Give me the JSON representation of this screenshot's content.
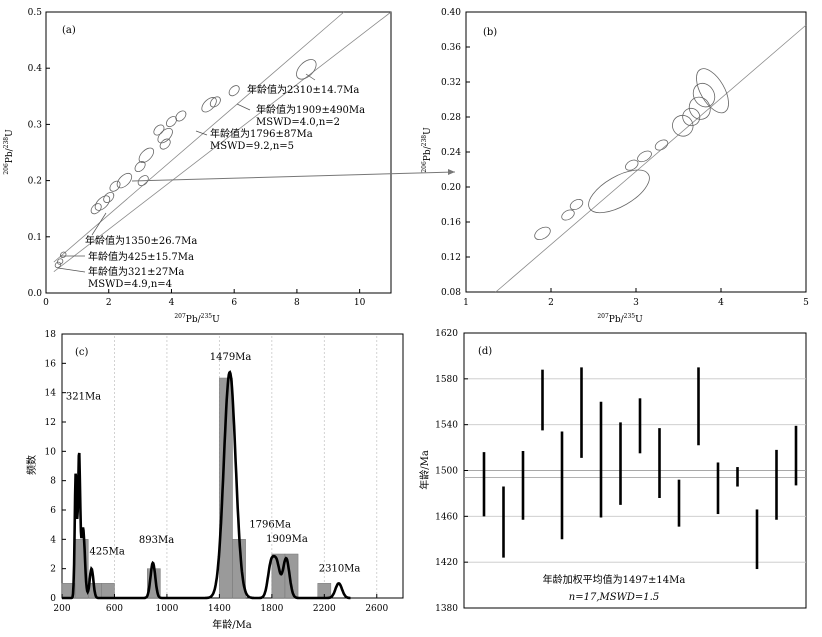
{
  "colors": {
    "curve": "#000000",
    "line": "#8a8a8a",
    "bar": "#9a9a9a",
    "grid": "#c8c8c8"
  },
  "chart_data": [
    {
      "panel": "(a)",
      "type": "scatter",
      "xlabel": "207Pb/235U",
      "ylabel": "206Pb/238U",
      "xlim": [
        0,
        11
      ],
      "ylim": [
        0,
        0.5
      ],
      "x_ticks": [
        0,
        2,
        4,
        6,
        8,
        10
      ],
      "y_ticks": [
        0,
        0.1,
        0.2,
        0.3,
        0.4,
        0.5
      ],
      "concordia_ages_Ma": [
        500,
        1500,
        2500
      ],
      "annotations": [
        "年龄值为2310±14.7Ma",
        "年龄值为1909±490Ma",
        "MSWD=4.0,n=2",
        "年龄值为1796±87Ma",
        "MSWD=9.2,n=5",
        "年龄值为1350±26.7Ma",
        "年龄值为425±15.7Ma",
        "年龄值为321±27Ma",
        "MSWD=4.9,n=4"
      ],
      "ellipses": [
        {
          "x": 8.3,
          "y": 0.398
        },
        {
          "x": 6.0,
          "y": 0.36
        },
        {
          "x": 5.4,
          "y": 0.34
        },
        {
          "x": 5.2,
          "y": 0.335
        },
        {
          "x": 4.3,
          "y": 0.315
        },
        {
          "x": 4.0,
          "y": 0.305
        },
        {
          "x": 3.8,
          "y": 0.28
        },
        {
          "x": 3.6,
          "y": 0.29
        },
        {
          "x": 3.8,
          "y": 0.265
        },
        {
          "x": 3.2,
          "y": 0.245
        },
        {
          "x": 3.0,
          "y": 0.225
        },
        {
          "x": 3.1,
          "y": 0.2
        },
        {
          "x": 2.5,
          "y": 0.2
        },
        {
          "x": 2.2,
          "y": 0.19
        },
        {
          "x": 2.0,
          "y": 0.17
        },
        {
          "x": 1.8,
          "y": 0.16
        },
        {
          "x": 1.6,
          "y": 0.15
        },
        {
          "x": 0.55,
          "y": 0.068
        },
        {
          "x": 0.45,
          "y": 0.056
        },
        {
          "x": 0.38,
          "y": 0.05
        }
      ]
    },
    {
      "panel": "(b)",
      "type": "scatter",
      "xlabel": "207Pb/235U",
      "ylabel": "206Pb/238U",
      "xlim": [
        1,
        5
      ],
      "ylim": [
        0.08,
        0.4
      ],
      "x_ticks": [
        1,
        2,
        3,
        4,
        5
      ],
      "y_ticks": [
        0.08,
        0.12,
        0.16,
        0.2,
        0.24,
        0.28,
        0.32,
        0.36,
        0.4
      ],
      "concordia_ages_Ma": [
        1100,
        1500
      ],
      "ellipses": [
        {
          "x": 1.9,
          "y": 0.147,
          "rx": 0.1,
          "ry": 0.006
        },
        {
          "x": 2.2,
          "y": 0.168,
          "rx": 0.08,
          "ry": 0.005
        },
        {
          "x": 2.3,
          "y": 0.18,
          "rx": 0.08,
          "ry": 0.005
        },
        {
          "x": 2.8,
          "y": 0.195,
          "rx": 0.4,
          "ry": 0.017
        },
        {
          "x": 2.95,
          "y": 0.225,
          "rx": 0.08,
          "ry": 0.005
        },
        {
          "x": 3.1,
          "y": 0.235,
          "rx": 0.09,
          "ry": 0.005
        },
        {
          "x": 3.3,
          "y": 0.248,
          "rx": 0.08,
          "ry": 0.005
        },
        {
          "x": 3.55,
          "y": 0.27,
          "rx": 0.12,
          "ry": 0.012
        },
        {
          "x": 3.65,
          "y": 0.28,
          "rx": 0.1,
          "ry": 0.01
        },
        {
          "x": 3.75,
          "y": 0.29,
          "rx": 0.12,
          "ry": 0.013
        },
        {
          "x": 3.8,
          "y": 0.305,
          "rx": 0.12,
          "ry": 0.014
        },
        {
          "x": 3.9,
          "y": 0.31,
          "rx": 0.14,
          "ry": 0.028
        }
      ]
    },
    {
      "panel": "(c)",
      "type": "bar",
      "xlabel": "年龄/Ma",
      "ylabel": "频数",
      "xlim": [
        200,
        2800
      ],
      "ylim": [
        0,
        18
      ],
      "x_ticks": [
        200,
        600,
        1000,
        1400,
        1800,
        2200,
        2600
      ],
      "y_ticks": [
        0,
        2,
        4,
        6,
        8,
        10,
        12,
        14,
        16,
        18
      ],
      "bins": [
        {
          "start": 200,
          "end": 300,
          "value": 1
        },
        {
          "start": 300,
          "end": 400,
          "value": 4
        },
        {
          "start": 400,
          "end": 500,
          "value": 1
        },
        {
          "start": 500,
          "end": 600,
          "value": 1
        },
        {
          "start": 850,
          "end": 950,
          "value": 2
        },
        {
          "start": 1400,
          "end": 1500,
          "value": 15
        },
        {
          "start": 1500,
          "end": 1600,
          "value": 4
        },
        {
          "start": 1800,
          "end": 1900,
          "value": 3
        },
        {
          "start": 1900,
          "end": 2000,
          "value": 3
        },
        {
          "start": 2150,
          "end": 2250,
          "value": 1
        }
      ],
      "peaks": [
        {
          "label": "321Ma",
          "x": 321
        },
        {
          "label": "425Ma",
          "x": 425
        },
        {
          "label": "893Ma",
          "x": 893
        },
        {
          "label": "1479Ma",
          "x": 1479
        },
        {
          "label": "1796Ma",
          "x": 1796
        },
        {
          "label": "1909Ma",
          "x": 1909
        },
        {
          "label": "2310Ma",
          "x": 2310
        }
      ]
    },
    {
      "panel": "(d)",
      "type": "error-bar",
      "ylabel": "年龄/Ma",
      "ylim": [
        1380,
        1620
      ],
      "y_ticks": [
        1380,
        1420,
        1460,
        1500,
        1540,
        1580,
        1620
      ],
      "mean": 1497,
      "mean_band": [
        1494,
        1500
      ],
      "intervals": [
        [
          1460,
          1516
        ],
        [
          1424,
          1486
        ],
        [
          1457,
          1517
        ],
        [
          1535,
          1588
        ],
        [
          1440,
          1534
        ],
        [
          1511,
          1590
        ],
        [
          1459,
          1560
        ],
        [
          1470,
          1542
        ],
        [
          1515,
          1563
        ],
        [
          1476,
          1537
        ],
        [
          1451,
          1492
        ],
        [
          1522,
          1590
        ],
        [
          1462,
          1507
        ],
        [
          1486,
          1503
        ],
        [
          1414,
          1466
        ],
        [
          1457,
          1518
        ],
        [
          1487,
          1539
        ]
      ],
      "annotation": "年龄加权平均值为1497±14Ma",
      "annotation2": "n=17,MSWD=1.5"
    }
  ]
}
